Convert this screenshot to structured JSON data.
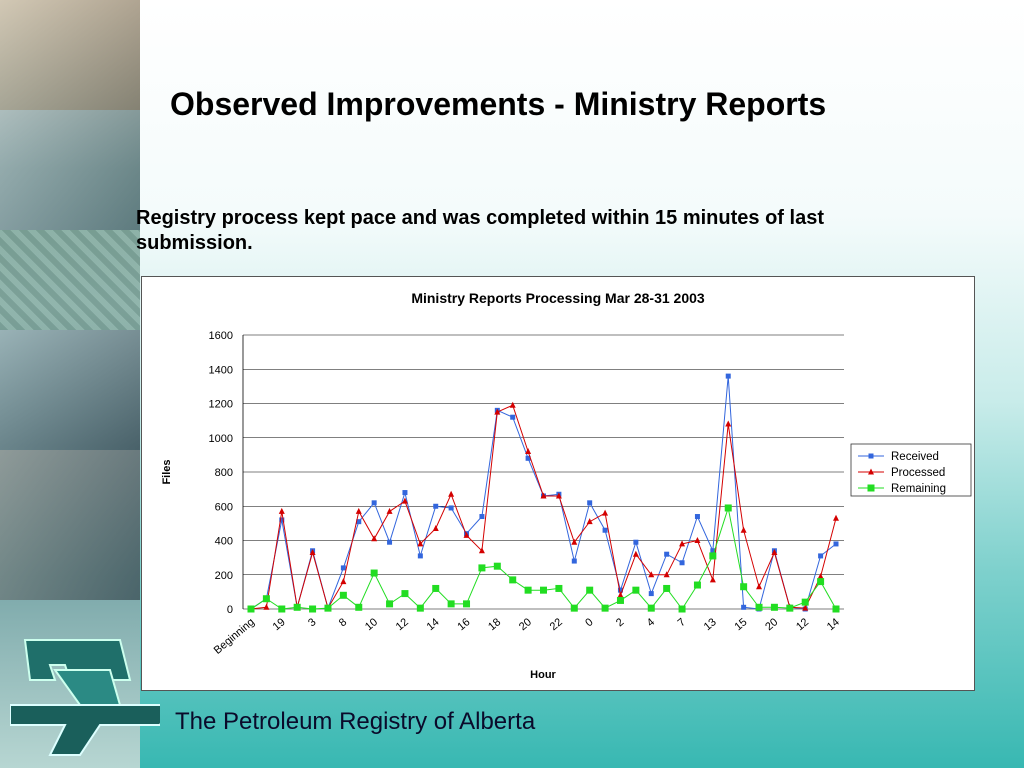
{
  "slide": {
    "title": "Observed Improvements -  Ministry Reports",
    "subtitle": "Registry process kept pace and was completed within 15 minutes of last submission.",
    "footer": "The Petroleum Registry of Alberta"
  },
  "colors": {
    "received": "#3366dd",
    "processed": "#d40000",
    "remaining": "#22dd22"
  },
  "chart_data": {
    "type": "line",
    "title": "Ministry Reports Processing Mar 28-31 2003",
    "xlabel": "Hour",
    "ylabel": "Files",
    "ylim": [
      0,
      1600
    ],
    "yticks": [
      0,
      200,
      400,
      600,
      800,
      1000,
      1200,
      1400,
      1600
    ],
    "grid": true,
    "legend_position": "right",
    "x_tick_labels": [
      "Beginning",
      "19",
      "3",
      "8",
      "10",
      "12",
      "14",
      "16",
      "18",
      "20",
      "22",
      "0",
      "2",
      "4",
      "7",
      "13",
      "15",
      "20",
      "12",
      "14"
    ],
    "series": [
      {
        "name": "Received",
        "values": [
          0,
          60,
          520,
          10,
          340,
          5,
          240,
          510,
          620,
          390,
          680,
          310,
          600,
          590,
          440,
          540,
          1160,
          1120,
          880,
          660,
          670,
          280,
          620,
          460,
          110,
          390,
          90,
          320,
          270,
          540,
          340,
          1360,
          10,
          0,
          340,
          10,
          0,
          310,
          380
        ]
      },
      {
        "name": "Processed",
        "values": [
          0,
          10,
          570,
          10,
          330,
          5,
          160,
          570,
          410,
          570,
          630,
          380,
          470,
          670,
          430,
          340,
          1150,
          1190,
          920,
          660,
          660,
          390,
          510,
          560,
          80,
          320,
          200,
          200,
          380,
          400,
          170,
          1080,
          460,
          130,
          330,
          10,
          5,
          190,
          530
        ]
      },
      {
        "name": "Remaining",
        "values": [
          0,
          60,
          0,
          10,
          0,
          5,
          80,
          10,
          210,
          30,
          90,
          5,
          120,
          30,
          30,
          240,
          250,
          170,
          110,
          110,
          120,
          5,
          110,
          5,
          50,
          110,
          5,
          120,
          0,
          140,
          310,
          590,
          130,
          10,
          10,
          5,
          40,
          160,
          0
        ]
      }
    ]
  }
}
